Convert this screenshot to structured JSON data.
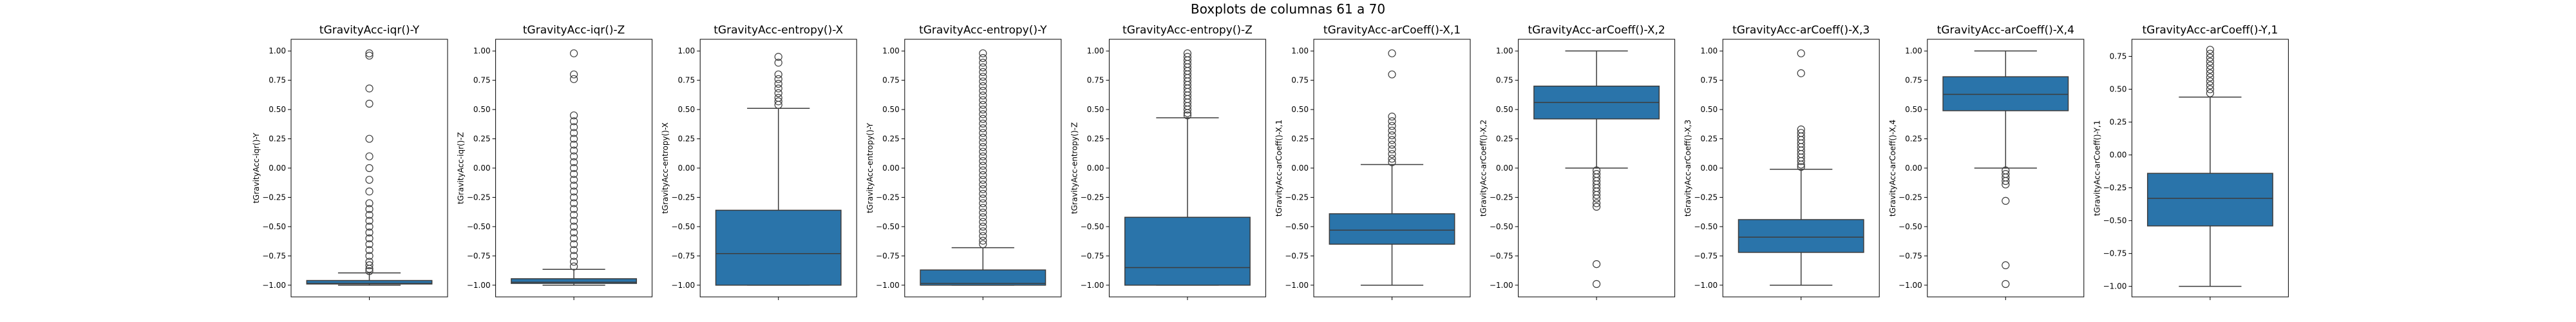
{
  "suptitle": "Boxplots de columnas 61 a 70",
  "style": {
    "box_color": "#2a74aa",
    "line_color": "#3d3d3d",
    "background": "#ffffff"
  },
  "chart_data": [
    {
      "type": "box",
      "title": "tGravityAcc-iqr()-Y",
      "ylabel": "tGravityAcc-iqr()-Y",
      "ylim": [
        -1.1,
        1.1
      ],
      "yticks": [
        -1.0,
        -0.75,
        -0.5,
        -0.25,
        0.0,
        0.25,
        0.5,
        0.75,
        1.0
      ],
      "ytick_labels": [
        "−1.00",
        "−0.75",
        "−0.50",
        "−0.25",
        "0.00",
        "0.25",
        "0.50",
        "0.75",
        "1.00"
      ],
      "q1": -0.99,
      "median": -0.985,
      "q3": -0.96,
      "whisker_low": -1.0,
      "whisker_high": -0.895,
      "outliers": [
        0.98,
        0.96,
        0.68,
        0.55,
        0.25,
        0.1,
        0.0,
        -0.1,
        -0.2,
        -0.3,
        -0.35,
        -0.4,
        -0.45,
        -0.5,
        -0.55,
        -0.6,
        -0.65,
        -0.7,
        -0.75,
        -0.8,
        -0.83,
        -0.86,
        -0.88
      ]
    },
    {
      "type": "box",
      "title": "tGravityAcc-iqr()-Z",
      "ylabel": "tGravityAcc-iqr()-Z",
      "ylim": [
        -1.1,
        1.1
      ],
      "yticks": [
        -1.0,
        -0.75,
        -0.5,
        -0.25,
        0.0,
        0.25,
        0.5,
        0.75,
        1.0
      ],
      "ytick_labels": [
        "−1.00",
        "−0.75",
        "−0.50",
        "−0.25",
        "0.00",
        "0.25",
        "0.50",
        "0.75",
        "1.00"
      ],
      "q1": -0.985,
      "median": -0.975,
      "q3": -0.945,
      "whisker_low": -1.0,
      "whisker_high": -0.865,
      "outliers": [
        0.98,
        0.8,
        0.76,
        0.45,
        0.4,
        0.35,
        0.3,
        0.25,
        0.2,
        0.15,
        0.1,
        0.05,
        0.0,
        -0.05,
        -0.1,
        -0.15,
        -0.2,
        -0.25,
        -0.3,
        -0.35,
        -0.4,
        -0.45,
        -0.5,
        -0.55,
        -0.6,
        -0.65,
        -0.7,
        -0.75,
        -0.8,
        -0.84
      ]
    },
    {
      "type": "box",
      "title": "tGravityAcc-entropy()-X",
      "ylabel": "tGravityAcc-entropy()-X",
      "ylim": [
        -1.1,
        1.1
      ],
      "yticks": [
        -1.0,
        -0.75,
        -0.5,
        -0.25,
        0.0,
        0.25,
        0.5,
        0.75,
        1.0
      ],
      "ytick_labels": [
        "−1.00",
        "−0.75",
        "−0.50",
        "−0.25",
        "0.00",
        "0.25",
        "0.50",
        "0.75",
        "1.00"
      ],
      "q1": -1.0,
      "median": -0.73,
      "q3": -0.36,
      "whisker_low": -1.0,
      "whisker_high": 0.51,
      "outliers": [
        0.95,
        0.9,
        0.8,
        0.76,
        0.72,
        0.68,
        0.64,
        0.6,
        0.57,
        0.54
      ]
    },
    {
      "type": "box",
      "title": "tGravityAcc-entropy()-Y",
      "ylabel": "tGravityAcc-entropy()-Y",
      "ylim": [
        -1.1,
        1.1
      ],
      "yticks": [
        -1.0,
        -0.75,
        -0.5,
        -0.25,
        0.0,
        0.25,
        0.5,
        0.75,
        1.0
      ],
      "ytick_labels": [
        "−1.00",
        "−0.75",
        "−0.50",
        "−0.25",
        "0.00",
        "0.25",
        "0.50",
        "0.75",
        "1.00"
      ],
      "q1": -1.0,
      "median": -0.985,
      "q3": -0.87,
      "whisker_low": -1.0,
      "whisker_high": -0.68,
      "outliers": [
        0.98,
        0.94,
        0.9,
        0.86,
        0.82,
        0.78,
        0.74,
        0.7,
        0.66,
        0.62,
        0.58,
        0.54,
        0.5,
        0.46,
        0.42,
        0.38,
        0.34,
        0.3,
        0.26,
        0.22,
        0.18,
        0.14,
        0.1,
        0.06,
        0.02,
        -0.02,
        -0.06,
        -0.1,
        -0.14,
        -0.18,
        -0.22,
        -0.26,
        -0.3,
        -0.34,
        -0.38,
        -0.42,
        -0.46,
        -0.5,
        -0.54,
        -0.58,
        -0.62,
        -0.65
      ]
    },
    {
      "type": "box",
      "title": "tGravityAcc-entropy()-Z",
      "ylabel": "tGravityAcc-entropy()-Z",
      "ylim": [
        -1.1,
        1.1
      ],
      "yticks": [
        -1.0,
        -0.75,
        -0.5,
        -0.25,
        0.0,
        0.25,
        0.5,
        0.75,
        1.0
      ],
      "ytick_labels": [
        "−1.00",
        "−0.75",
        "−0.50",
        "−0.25",
        "0.00",
        "0.25",
        "0.50",
        "0.75",
        "1.00"
      ],
      "q1": -1.0,
      "median": -0.85,
      "q3": -0.42,
      "whisker_low": -1.0,
      "whisker_high": 0.43,
      "outliers": [
        0.98,
        0.95,
        0.92,
        0.89,
        0.86,
        0.83,
        0.8,
        0.77,
        0.74,
        0.71,
        0.68,
        0.65,
        0.62,
        0.59,
        0.56,
        0.53,
        0.5,
        0.47,
        0.45
      ]
    },
    {
      "type": "box",
      "title": "tGravityAcc-arCoeff()-X,1",
      "ylabel": "tGravityAcc-arCoeff()-X,1",
      "ylim": [
        -1.1,
        1.1
      ],
      "yticks": [
        -1.0,
        -0.75,
        -0.5,
        -0.25,
        0.0,
        0.25,
        0.5,
        0.75,
        1.0
      ],
      "ytick_labels": [
        "−1.00",
        "−0.75",
        "−0.50",
        "−0.25",
        "0.00",
        "0.25",
        "0.50",
        "0.75",
        "1.00"
      ],
      "q1": -0.65,
      "median": -0.53,
      "q3": -0.39,
      "whisker_low": -1.0,
      "whisker_high": 0.03,
      "outliers": [
        0.98,
        0.8,
        0.44,
        0.4,
        0.36,
        0.32,
        0.28,
        0.24,
        0.2,
        0.16,
        0.12,
        0.08,
        0.05
      ]
    },
    {
      "type": "box",
      "title": "tGravityAcc-arCoeff()-X,2",
      "ylabel": "tGravityAcc-arCoeff()-X,2",
      "ylim": [
        -1.1,
        1.1
      ],
      "yticks": [
        -1.0,
        -0.75,
        -0.5,
        -0.25,
        0.0,
        0.25,
        0.5,
        0.75,
        1.0
      ],
      "ytick_labels": [
        "−1.00",
        "−0.75",
        "−0.50",
        "−0.25",
        "0.00",
        "0.25",
        "0.50",
        "0.75",
        "1.00"
      ],
      "q1": 0.42,
      "median": 0.56,
      "q3": 0.7,
      "whisker_low": 0.0,
      "whisker_high": 1.0,
      "outliers": [
        -0.02,
        -0.05,
        -0.08,
        -0.11,
        -0.14,
        -0.17,
        -0.2,
        -0.23,
        -0.26,
        -0.3,
        -0.33,
        -0.82,
        -0.99
      ]
    },
    {
      "type": "box",
      "title": "tGravityAcc-arCoeff()-X,3",
      "ylabel": "tGravityAcc-arCoeff()-X,3",
      "ylim": [
        -1.1,
        1.1
      ],
      "yticks": [
        -1.0,
        -0.75,
        -0.5,
        -0.25,
        0.0,
        0.25,
        0.5,
        0.75,
        1.0
      ],
      "ytick_labels": [
        "−1.00",
        "−0.75",
        "−0.50",
        "−0.25",
        "0.00",
        "0.25",
        "0.50",
        "0.75",
        "1.00"
      ],
      "q1": -0.72,
      "median": -0.59,
      "q3": -0.44,
      "whisker_low": -1.0,
      "whisker_high": -0.01,
      "outliers": [
        0.98,
        0.81,
        0.33,
        0.3,
        0.27,
        0.24,
        0.21,
        0.18,
        0.15,
        0.12,
        0.09,
        0.06,
        0.03,
        0.01
      ]
    },
    {
      "type": "box",
      "title": "tGravityAcc-arCoeff()-X,4",
      "ylabel": "tGravityAcc-arCoeff()-X,4",
      "ylim": [
        -1.1,
        1.1
      ],
      "yticks": [
        -1.0,
        -0.75,
        -0.5,
        -0.25,
        0.0,
        0.25,
        0.5,
        0.75,
        1.0
      ],
      "ytick_labels": [
        "−1.00",
        "−0.75",
        "−0.50",
        "−0.25",
        "0.00",
        "0.25",
        "0.50",
        "0.75",
        "1.00"
      ],
      "q1": 0.49,
      "median": 0.63,
      "q3": 0.78,
      "whisker_low": 0.0,
      "whisker_high": 1.0,
      "outliers": [
        -0.02,
        -0.05,
        -0.08,
        -0.11,
        -0.14,
        -0.28,
        -0.83,
        -0.99
      ]
    },
    {
      "type": "box",
      "title": "tGravityAcc-arCoeff()-Y,1",
      "ylabel": "tGravityAcc-arCoeff()-Y,1",
      "ylim": [
        -1.08,
        0.88
      ],
      "yticks": [
        -1.0,
        -0.75,
        -0.5,
        -0.25,
        0.0,
        0.25,
        0.5,
        0.75
      ],
      "ytick_labels": [
        "−1.00",
        "−0.75",
        "−0.50",
        "−0.25",
        "0.00",
        "0.25",
        "0.50",
        "0.75"
      ],
      "q1": -0.54,
      "median": -0.33,
      "q3": -0.14,
      "whisker_low": -1.0,
      "whisker_high": 0.44,
      "outliers": [
        0.8,
        0.77,
        0.74,
        0.71,
        0.68,
        0.65,
        0.62,
        0.59,
        0.56,
        0.53,
        0.5,
        0.47
      ]
    }
  ]
}
